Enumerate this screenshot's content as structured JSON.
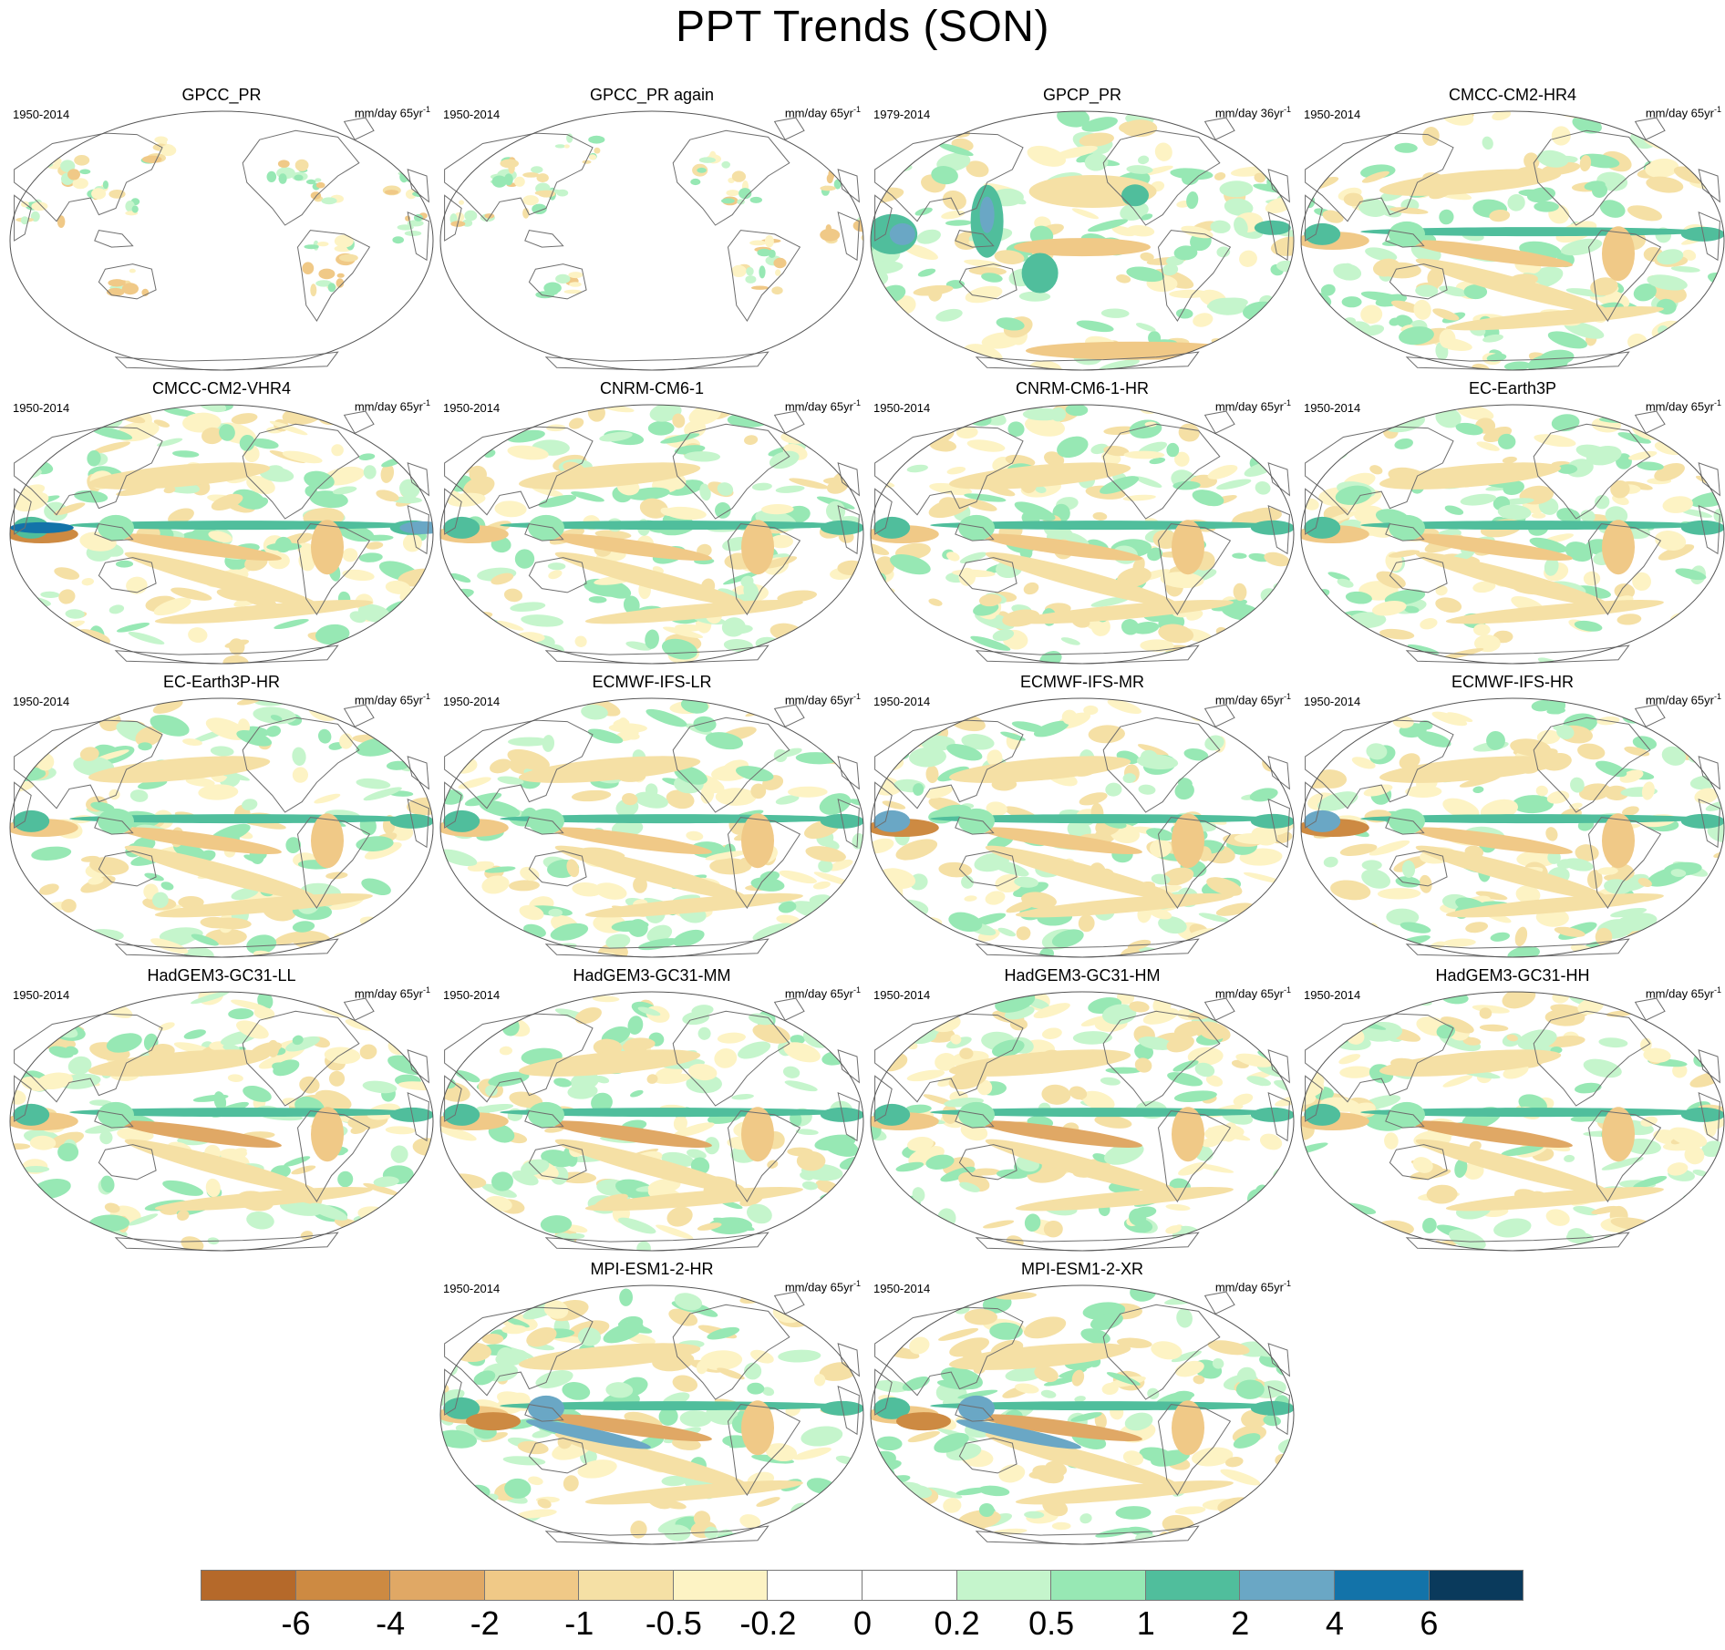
{
  "title": "PPT Trends (SON)",
  "panels": [
    {
      "title": "GPCC_PR",
      "period": "1950-2014",
      "units": "mm/day 65yr",
      "units_exp": "-1",
      "pattern": "obs"
    },
    {
      "title": "GPCC_PR again",
      "period": "1950-2014",
      "units": "mm/day 65yr",
      "units_exp": "-1",
      "pattern": "obs"
    },
    {
      "title": "GPCP_PR",
      "period": "1979-2014",
      "units": "mm/day 36yr",
      "units_exp": "-1",
      "pattern": "gpcp"
    },
    {
      "title": "CMCC-CM2-HR4",
      "period": "1950-2014",
      "units": "mm/day 65yr",
      "units_exp": "-1",
      "pattern": "model"
    },
    {
      "title": "CMCC-CM2-VHR4",
      "period": "1950-2014",
      "units": "mm/day 65yr",
      "units_exp": "-1",
      "pattern": "vhr"
    },
    {
      "title": "CNRM-CM6-1",
      "period": "1950-2014",
      "units": "mm/day 65yr",
      "units_exp": "-1",
      "pattern": "model"
    },
    {
      "title": "CNRM-CM6-1-HR",
      "period": "1950-2014",
      "units": "mm/day 65yr",
      "units_exp": "-1",
      "pattern": "model"
    },
    {
      "title": "EC-Earth3P",
      "period": "1950-2014",
      "units": "mm/day 65yr",
      "units_exp": "-1",
      "pattern": "model"
    },
    {
      "title": "EC-Earth3P-HR",
      "period": "1950-2014",
      "units": "mm/day 65yr",
      "units_exp": "-1",
      "pattern": "model"
    },
    {
      "title": "ECMWF-IFS-LR",
      "period": "1950-2014",
      "units": "mm/day 65yr",
      "units_exp": "-1",
      "pattern": "model"
    },
    {
      "title": "ECMWF-IFS-MR",
      "period": "1950-2014",
      "units": "mm/day 65yr",
      "units_exp": "-1",
      "pattern": "strong"
    },
    {
      "title": "ECMWF-IFS-HR",
      "period": "1950-2014",
      "units": "mm/day 65yr",
      "units_exp": "-1",
      "pattern": "strong"
    },
    {
      "title": "HadGEM3-GC31-LL",
      "period": "1950-2014",
      "units": "mm/day 65yr",
      "units_exp": "-1",
      "pattern": "had"
    },
    {
      "title": "HadGEM3-GC31-MM",
      "period": "1950-2014",
      "units": "mm/day 65yr",
      "units_exp": "-1",
      "pattern": "had"
    },
    {
      "title": "HadGEM3-GC31-HM",
      "period": "1950-2014",
      "units": "mm/day 65yr",
      "units_exp": "-1",
      "pattern": "had"
    },
    {
      "title": "HadGEM3-GC31-HH",
      "period": "1950-2014",
      "units": "mm/day 65yr",
      "units_exp": "-1",
      "pattern": "had"
    },
    {
      "title": "MPI-ESM1-2-HR",
      "period": "1950-2014",
      "units": "mm/day 65yr",
      "units_exp": "-1",
      "pattern": "mpi"
    },
    {
      "title": "MPI-ESM1-2-XR",
      "period": "1950-2014",
      "units": "mm/day 65yr",
      "units_exp": "-1",
      "pattern": "mpi"
    }
  ],
  "colorbar": {
    "colors": [
      "#b5692a",
      "#cd8a42",
      "#e0a865",
      "#f0c987",
      "#f5e0a5",
      "#fdf3c4",
      "#ffffff",
      "#ffffff",
      "#c5f5cc",
      "#97e8b4",
      "#50be9c",
      "#6aa7c5",
      "#1373a9",
      "#0a3a5c"
    ],
    "labels": [
      "-6",
      "-4",
      "-2",
      "-1",
      "-0.5",
      "-0.2",
      "0",
      "0.2",
      "0.5",
      "1",
      "2",
      "4",
      "6"
    ]
  }
}
